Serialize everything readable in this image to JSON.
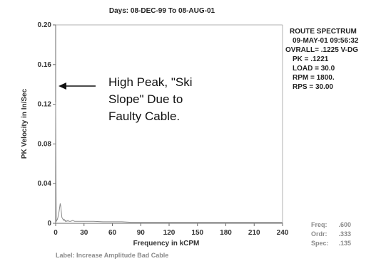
{
  "chart_data": {
    "type": "line",
    "title": "Days:  08-DEC-99  To  08-AUG-01",
    "xlabel": "Frequency in kCPM",
    "ylabel": "PK Velocity in In/Sec",
    "xlim": [
      0,
      240
    ],
    "ylim": [
      0,
      0.2
    ],
    "x_ticks": [
      "0",
      "30",
      "60",
      "90",
      "120",
      "150",
      "180",
      "210",
      "240"
    ],
    "y_ticks": [
      "0",
      "0.04",
      "0.08",
      "0.12",
      "0.16",
      "0.20"
    ],
    "grid": false,
    "series": [
      {
        "x": [
          0,
          0.6,
          1.2,
          1.8,
          2.4,
          3,
          3.6,
          4.2,
          4.8,
          5.4,
          6,
          6.6,
          7.2,
          7.8,
          8.4,
          9,
          9.6,
          10.2,
          10.8,
          11.4,
          12,
          13,
          14,
          15,
          16,
          18,
          20,
          22,
          25,
          28,
          30,
          35,
          40,
          50,
          60,
          70,
          80,
          90,
          100,
          120,
          140,
          160,
          180,
          200,
          220,
          240
        ],
        "values": [
          0.1221,
          0.002,
          0.003,
          0.004,
          0.006,
          0.009,
          0.012,
          0.016,
          0.02,
          0.017,
          0.011,
          0.006,
          0.005,
          0.004,
          0.003,
          0.004,
          0.003,
          0.002,
          0.003,
          0.002,
          0.002,
          0.003,
          0.002,
          0.002,
          0.002,
          0.003,
          0.002,
          0.002,
          0.002,
          0.002,
          0.002,
          0.002,
          0.002,
          0.0015,
          0.0015,
          0.0015,
          0.001,
          0.001,
          0.001,
          0.001,
          0.001,
          0.001,
          0.001,
          0.001,
          0.001,
          0.001
        ]
      }
    ],
    "annotation": {
      "lines": [
        "High Peak, \"Ski",
        "Slope\" Due to",
        "Faulty Cable."
      ],
      "arrow_target": {
        "x": 0,
        "y": 0.137
      }
    }
  },
  "info_panel": {
    "lines": [
      "ROUTE SPECTRUM",
      "09-MAY-01  09:56:32",
      "OVRALL= .1225 V-DG",
      "PK  =  .1221",
      "LOAD = 30.0",
      "RPM = 1800.",
      "RPS = 30.00"
    ]
  },
  "cursor_panel": {
    "labels": [
      "Freq:",
      "Ordr:",
      "Spec:"
    ],
    "values": [
      ".600",
      ".333",
      ".135"
    ]
  },
  "footer_label": "Label:  Increase Amplitude Bad Cable",
  "colors": {
    "line": "#8a8a8a",
    "axis": "#6a6a6a",
    "text": "#222222",
    "muted": "#8a8a8a"
  }
}
